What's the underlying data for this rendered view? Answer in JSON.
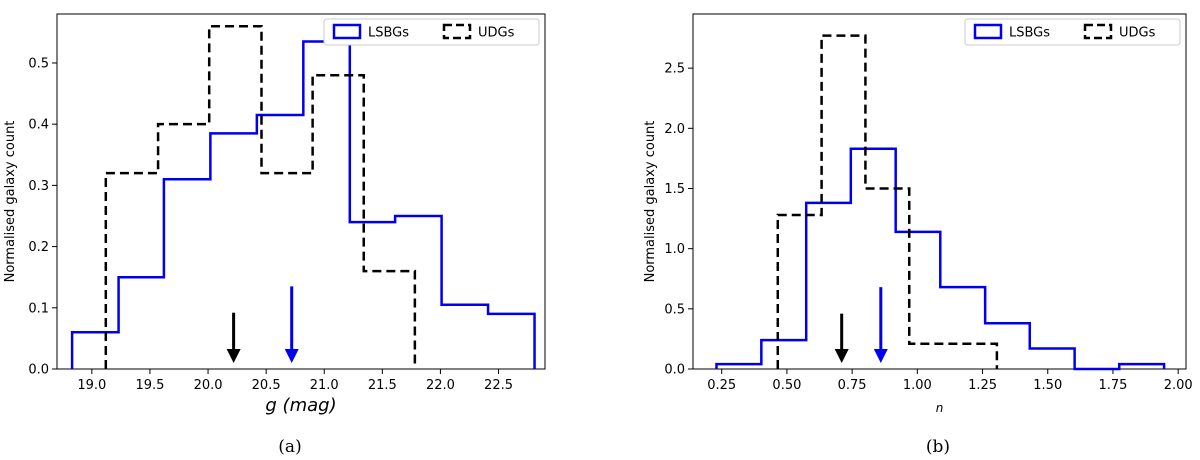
{
  "chart_data": [
    {
      "type": "histogram",
      "caption": "(a)",
      "xlabel": "g (mag)",
      "ylabel": "Normalised galaxy count",
      "xlim": [
        18.7,
        22.9
      ],
      "ylim": [
        0,
        0.58
      ],
      "xticks": [
        "19.0",
        "19.5",
        "20.0",
        "20.5",
        "21.0",
        "21.5",
        "22.0",
        "22.5"
      ],
      "xtick_values": [
        19.0,
        19.5,
        20.0,
        20.5,
        21.0,
        21.5,
        22.0,
        22.5
      ],
      "yticks": [
        "0.0",
        "0.1",
        "0.2",
        "0.3",
        "0.4",
        "0.5"
      ],
      "ytick_values": [
        0.0,
        0.1,
        0.2,
        0.3,
        0.4,
        0.5
      ],
      "legend": "top-right",
      "series": [
        {
          "name": "LSBGs",
          "color": "#0000ee",
          "style": "solid",
          "edges": [
            18.83,
            19.23,
            19.62,
            20.02,
            20.42,
            20.82,
            21.22,
            21.61,
            22.01,
            22.41,
            22.81
          ],
          "values": [
            0.06,
            0.15,
            0.31,
            0.385,
            0.415,
            0.535,
            0.24,
            0.25,
            0.105,
            0.09
          ]
        },
        {
          "name": "UDGs",
          "color": "#000000",
          "style": "dashed",
          "edges": [
            19.12,
            19.57,
            20.01,
            20.46,
            20.9,
            21.34,
            21.78
          ],
          "values": [
            0.32,
            0.4,
            0.56,
            0.32,
            0.48,
            0.16
          ]
        }
      ],
      "arrows": [
        {
          "x": 20.22,
          "color": "#000000",
          "top": 0.092
        },
        {
          "x": 20.72,
          "color": "#0000ee",
          "top": 0.135
        }
      ]
    },
    {
      "type": "histogram",
      "caption": "(b)",
      "xlabel": "n",
      "ylabel": "Normalised galaxy count",
      "xlim": [
        0.14,
        2.03
      ],
      "ylim": [
        0,
        2.95
      ],
      "xticks": [
        "0.25",
        "0.50",
        "0.75",
        "1.00",
        "1.25",
        "1.50",
        "1.75",
        "2.00"
      ],
      "xtick_values": [
        0.25,
        0.5,
        0.75,
        1.0,
        1.25,
        1.5,
        1.75,
        2.0
      ],
      "yticks": [
        "0.0",
        "0.5",
        "1.0",
        "1.5",
        "2.0",
        "2.5"
      ],
      "ytick_values": [
        0.0,
        0.5,
        1.0,
        1.5,
        2.0,
        2.5
      ],
      "legend": "top-right",
      "series": [
        {
          "name": "LSBGs",
          "color": "#0000ee",
          "style": "solid",
          "edges": [
            0.23,
            0.402,
            0.574,
            0.745,
            0.917,
            1.088,
            1.26,
            1.431,
            1.603,
            1.774,
            1.946
          ],
          "values": [
            0.04,
            0.24,
            1.38,
            1.83,
            1.14,
            0.68,
            0.38,
            0.17,
            0.0,
            0.04
          ]
        },
        {
          "name": "UDGs",
          "color": "#000000",
          "style": "dashed",
          "edges": [
            0.465,
            0.633,
            0.801,
            0.969,
            1.137,
            1.305
          ],
          "values": [
            1.28,
            2.77,
            1.5,
            0.21,
            0.21
          ]
        }
      ],
      "arrows": [
        {
          "x": 0.71,
          "color": "#000000",
          "top": 0.46
        },
        {
          "x": 0.86,
          "color": "#0000ee",
          "top": 0.68
        }
      ]
    }
  ]
}
